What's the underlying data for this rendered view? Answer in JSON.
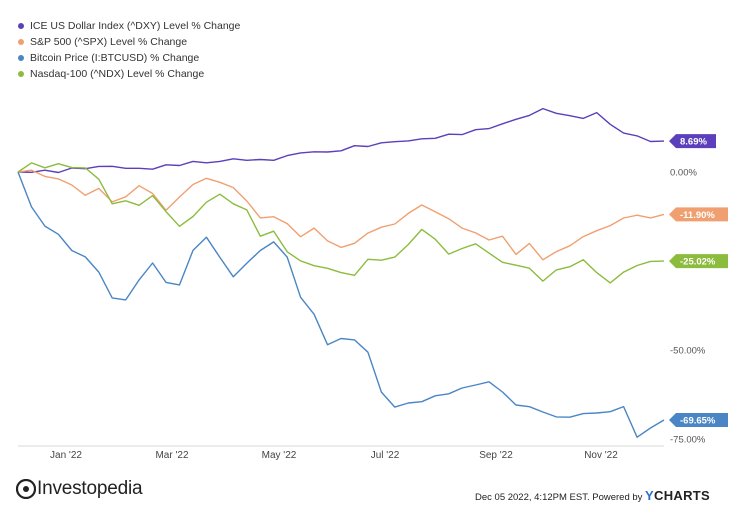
{
  "legend_title": "",
  "brand": {
    "name": "Investopedia"
  },
  "footer": {
    "timestamp": "Dec 05 2022, 4:12PM EST.",
    "powered_by": "Powered by",
    "ycharts_y": "Y",
    "ycharts_rest": "CHARTS"
  },
  "chart_data": {
    "type": "line",
    "title": "",
    "xlabel": "",
    "ylabel": "",
    "ylim": [
      -80,
      15
    ],
    "x_ticks": [
      "Jan '22",
      "Mar '22",
      "May '22",
      "Jul '22",
      "Sep '22",
      "Nov '22"
    ],
    "y_ticks": [
      {
        "value": 0,
        "label": "0.00%"
      },
      {
        "value": -50,
        "label": "-50.00%"
      },
      {
        "value": -75,
        "label": "-75.00%"
      }
    ],
    "series": [
      {
        "name": "ICE US Dollar Index (^DXY) Level % Change",
        "color": "#5b3fbb",
        "end_label": "8.69%",
        "values": [
          0,
          0.2,
          0.5,
          0.3,
          0.8,
          1.0,
          1.2,
          1.5,
          1.2,
          1.0,
          1.3,
          1.8,
          2.0,
          2.6,
          2.4,
          3.0,
          3.6,
          3.8,
          3.4,
          3.6,
          4.3,
          5.2,
          5.6,
          5.4,
          6.4,
          7.3,
          7.6,
          8.0,
          8.4,
          8.6,
          9.0,
          9.8,
          10.5,
          11.0,
          11.8,
          12.2,
          13.4,
          14.4,
          16.1,
          17.6,
          17.0,
          15.8,
          15.2,
          16.6,
          13.0,
          11.0,
          9.8,
          9.0,
          8.69
        ]
      },
      {
        "name": "S&P 500 (^SPX) Level % Change",
        "color": "#f0a070",
        "end_label": "-11.90%",
        "values": [
          0,
          0.5,
          -1.0,
          -2.0,
          -4.0,
          -6.5,
          -5.0,
          -8.0,
          -7.0,
          -3.5,
          -6.0,
          -11.0,
          -7.0,
          -4.0,
          -1.5,
          -3.0,
          -4.0,
          -8.0,
          -13.0,
          -12.5,
          -15.0,
          -18.0,
          -16.0,
          -19.0,
          -21.0,
          -20.0,
          -17.0,
          -16.0,
          -14.5,
          -12.0,
          -9.0,
          -11.0,
          -13.0,
          -15.5,
          -17.5,
          -19.0,
          -18.5,
          -23.0,
          -20.0,
          -24.5,
          -22.0,
          -21.0,
          -18.0,
          -17.0,
          -15.0,
          -13.0,
          -12.0,
          -12.5,
          -11.9
        ]
      },
      {
        "name": "Bitcoin Price (I:BTCUSD) % Change",
        "color": "#4a86c5",
        "end_label": "-69.65%",
        "values": [
          0,
          -10,
          -15,
          -18,
          -22,
          -24,
          -28,
          -35,
          -36,
          -30,
          -26,
          -31,
          -32,
          -22,
          -18,
          -24,
          -29,
          -26,
          -22,
          -20,
          -24,
          -35,
          -40,
          -48,
          -47,
          -47,
          -51,
          -62,
          -66,
          -65,
          -64,
          -63,
          -62,
          -61,
          -60,
          -59,
          -62,
          -65,
          -66,
          -67,
          -69,
          -69,
          -68,
          -68,
          -67,
          -66,
          -74,
          -72,
          -69.65
        ]
      },
      {
        "name": "Nasdaq-100 (^NDX) Level % Change",
        "color": "#8cbc3e",
        "end_label": "-25.02%",
        "values": [
          0,
          2.5,
          1.0,
          2.0,
          1.5,
          1.0,
          -1.5,
          -9.0,
          -8.0,
          -9.5,
          -7.0,
          -11.0,
          -15.5,
          -12.0,
          -8.5,
          -6.0,
          -9.0,
          -11.0,
          -18.0,
          -17.0,
          -22.0,
          -25.0,
          -26.0,
          -27.0,
          -28.5,
          -29.0,
          -25.0,
          -24.5,
          -24.0,
          -20.0,
          -16.0,
          -19.0,
          -23.0,
          -22.0,
          -20.0,
          -23.0,
          -25.0,
          -26.0,
          -27.0,
          -30.5,
          -28.0,
          -26.5,
          -25.0,
          -28.0,
          -31.0,
          -28.0,
          -26.0,
          -25.5,
          -25.02
        ]
      }
    ]
  }
}
